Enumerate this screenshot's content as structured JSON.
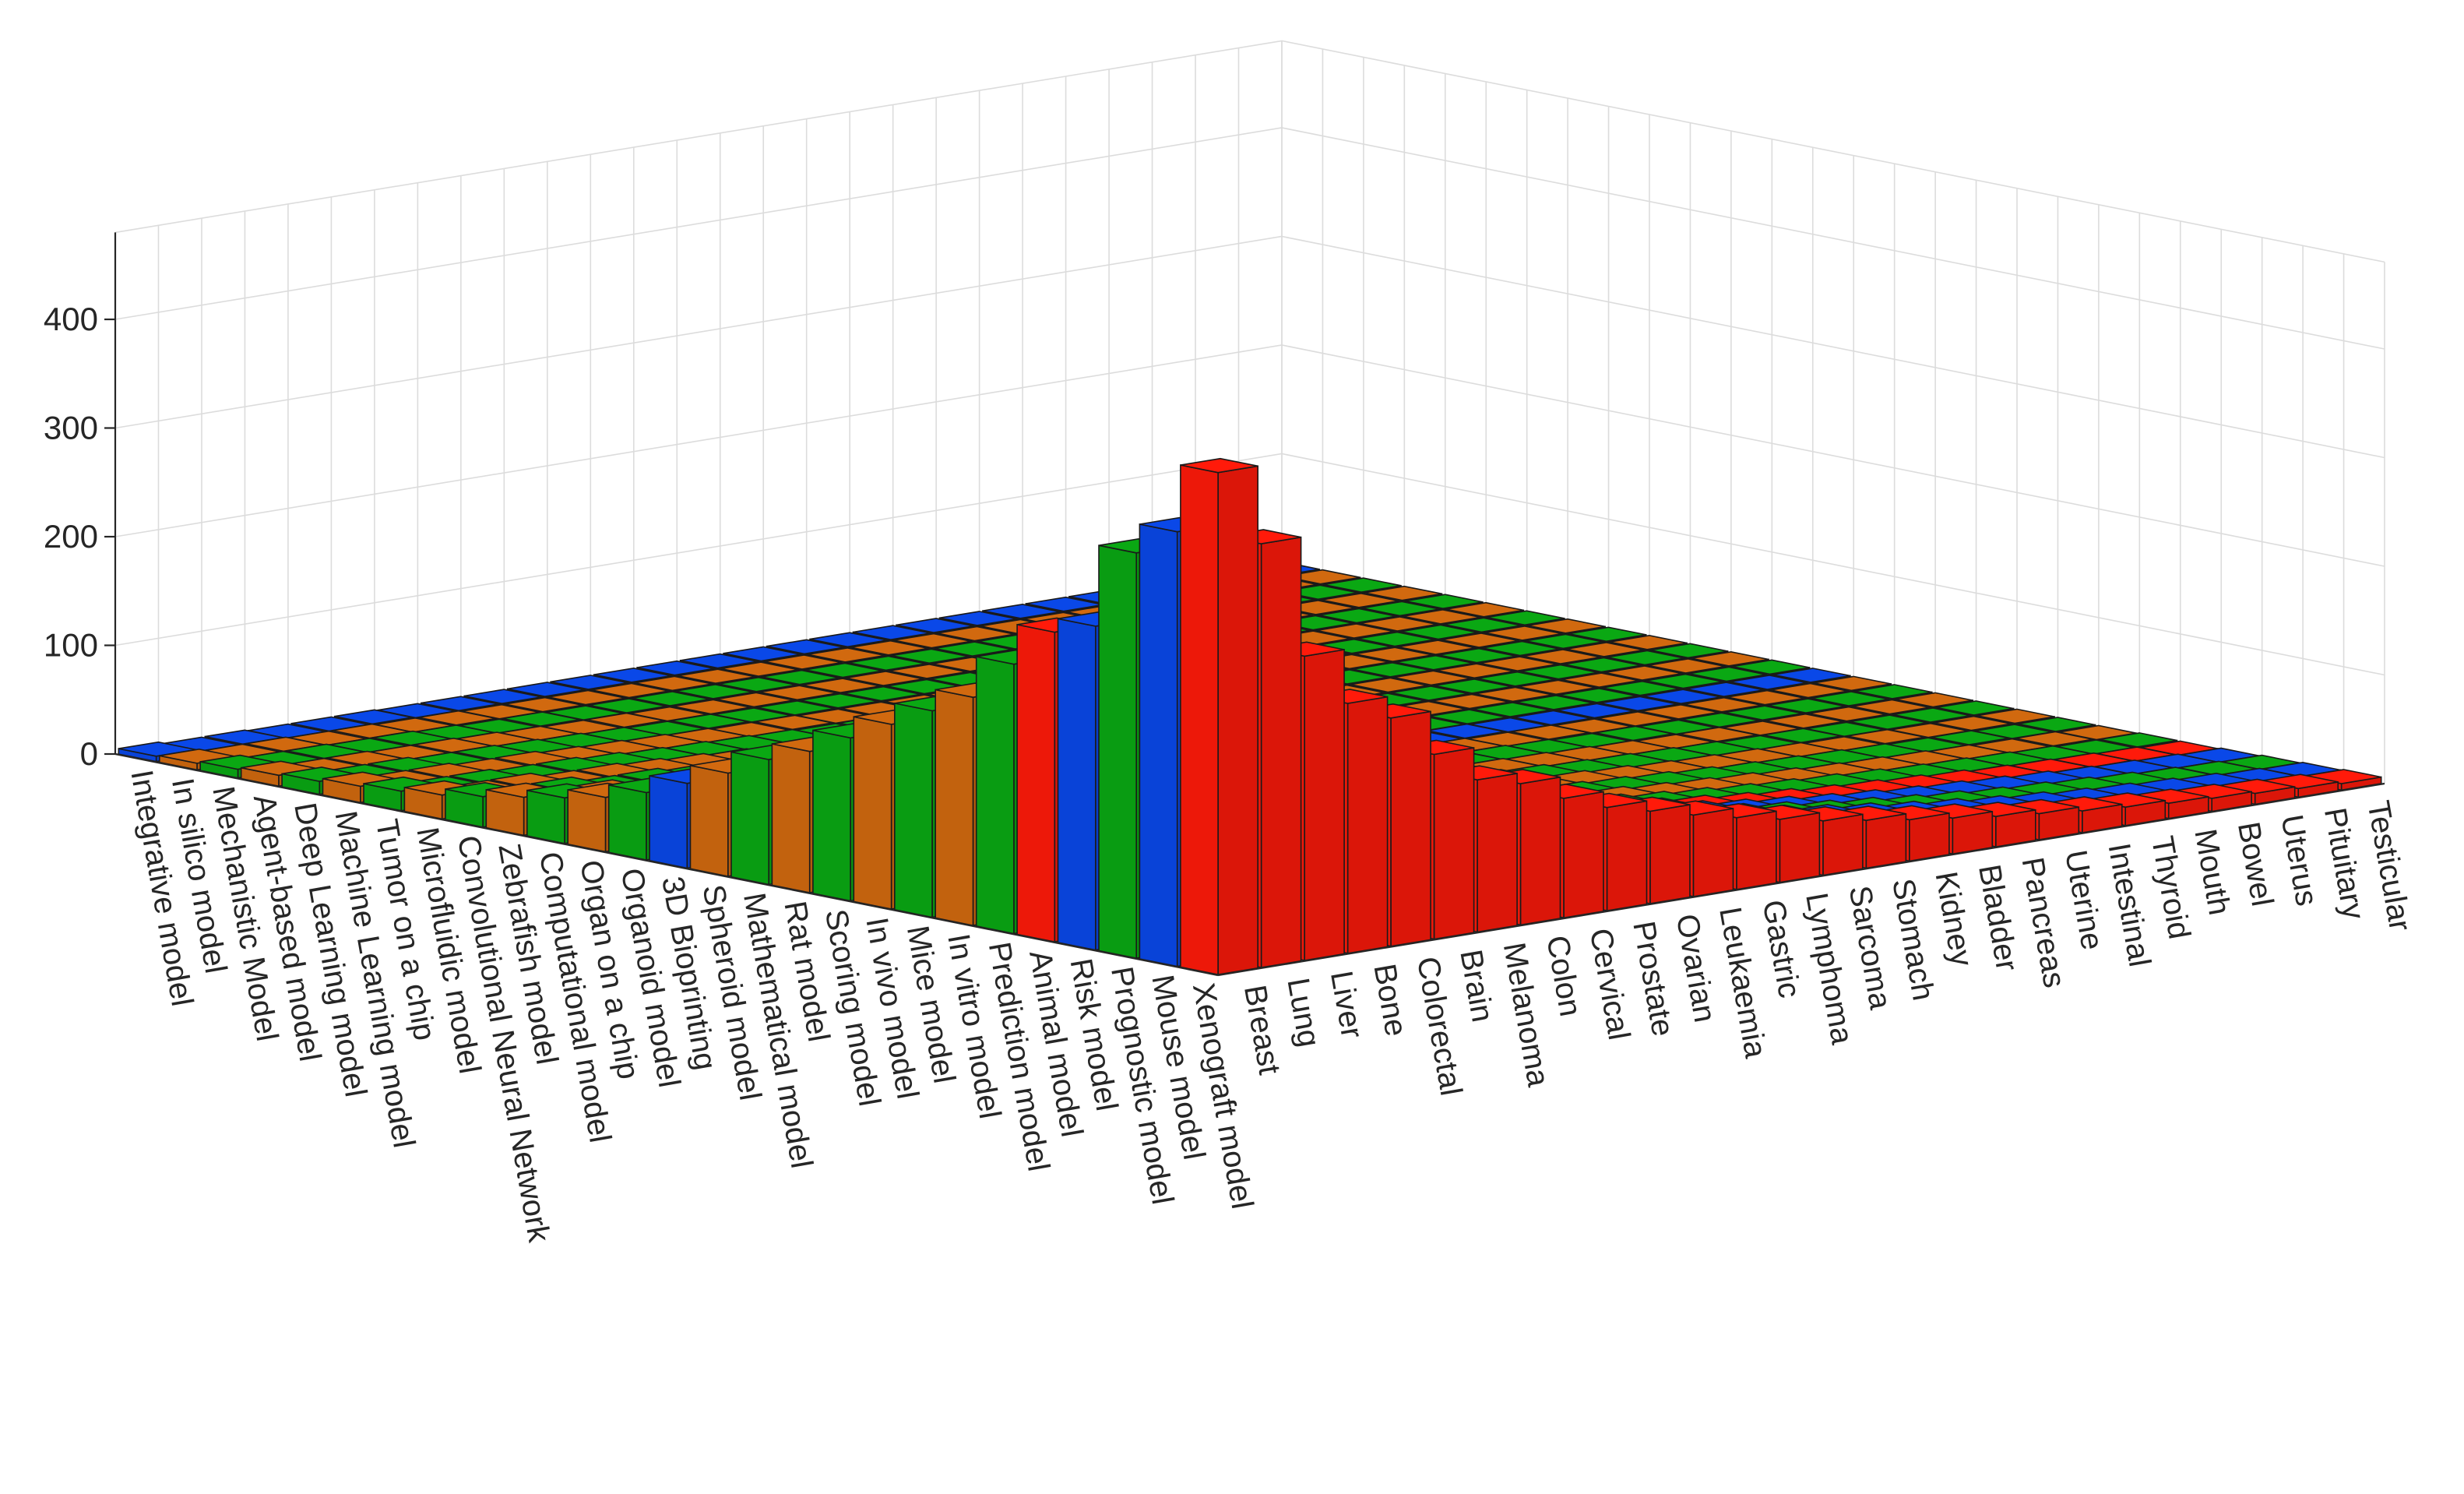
{
  "chart_data": {
    "type": "bar3d",
    "title": "",
    "z_ticks": [
      0,
      100,
      200,
      300,
      400
    ],
    "z_range": [
      0,
      480
    ],
    "grid": true,
    "models": [
      "Xenograft model",
      "Mouse model",
      "Prognostic model",
      "Risk model",
      "Animal model",
      "Prediction model",
      "In vitro model",
      "Mice model",
      "In vivo model",
      "Scoring model",
      "Rat model",
      "Mathematical model",
      "Spheroid model",
      "3D Bioprinting",
      "Organoid model",
      "Organ on a chip",
      "Computational model",
      "Zebrafish model",
      "Convolutional Neural Network",
      "Microfluidic model",
      "Tumor on a chip",
      "Machine Learning model",
      "Deep Learning model",
      "Agent-based model",
      "Mechanistic Model",
      "In silico model",
      "Integrative model"
    ],
    "cancers": [
      "Breast",
      "Lung",
      "Liver",
      "Bone",
      "Colorectal",
      "Brain",
      "Melanoma",
      "Colon",
      "Cervical",
      "Prostate",
      "Ovarian",
      "Leukaemia",
      "Gastric",
      "Lymphoma",
      "Sarcoma",
      "Stomach",
      "Kidney",
      "Bladder",
      "Pancreas",
      "Uterine",
      "Intestinal",
      "Thyroid",
      "Mouth",
      "Bowel",
      "Uterus",
      "Pituitary",
      "Testicular"
    ],
    "row_colors": [
      "red",
      "blue",
      "green",
      "blue",
      "red",
      "green",
      "orange",
      "green",
      "orange",
      "green",
      "orange",
      "green",
      "orange",
      "blue",
      "green",
      "orange",
      "green",
      "orange",
      "green",
      "orange",
      "green",
      "orange",
      "green",
      "orange",
      "green",
      "orange",
      "blue"
    ],
    "colors": {
      "red": "#ff1a0a",
      "blue": "#0a48e8",
      "green": "#0aa813",
      "orange": "#d1690f"
    },
    "series": [
      {
        "name": "Breast",
        "values": [
          462,
          400,
          373,
          298,
          285,
          248,
          210,
          190,
          170,
          150,
          130,
          115,
          95,
          78,
          62,
          50,
          42,
          35,
          28,
          22,
          18,
          15,
          12,
          10,
          8,
          6,
          5
        ]
      },
      {
        "name": "Lung",
        "values": [
          390,
          280,
          258,
          200,
          190,
          175,
          155,
          120,
          110,
          95,
          80,
          70,
          60,
          50,
          42,
          35,
          30,
          25,
          20,
          16,
          12,
          10,
          8,
          6,
          5,
          4,
          3
        ]
      },
      {
        "name": "Liver",
        "values": [
          280,
          270,
          215,
          180,
          160,
          140,
          130,
          115,
          100,
          90,
          80,
          70,
          60,
          50,
          40,
          35,
          30,
          25,
          20,
          16,
          12,
          10,
          8,
          6,
          5,
          4,
          3
        ]
      },
      {
        "name": "Bone",
        "values": [
          230,
          160,
          150,
          130,
          120,
          100,
          90,
          80,
          70,
          60,
          55,
          48,
          42,
          36,
          30,
          26,
          22,
          18,
          15,
          12,
          10,
          8,
          6,
          5,
          4,
          3,
          2
        ]
      },
      {
        "name": "Colorectal",
        "values": [
          210,
          170,
          160,
          140,
          120,
          100,
          90,
          80,
          70,
          60,
          55,
          48,
          42,
          36,
          30,
          26,
          22,
          18,
          15,
          12,
          10,
          8,
          6,
          5,
          4,
          3,
          2
        ]
      },
      {
        "name": "Brain",
        "values": [
          170,
          150,
          135,
          120,
          105,
          90,
          80,
          70,
          60,
          52,
          45,
          40,
          35,
          30,
          26,
          22,
          18,
          15,
          12,
          10,
          8,
          6,
          5,
          4,
          3,
          2,
          2
        ]
      },
      {
        "name": "Melanoma",
        "values": [
          140,
          130,
          115,
          100,
          90,
          80,
          70,
          60,
          52,
          45,
          40,
          35,
          30,
          26,
          22,
          18,
          15,
          12,
          10,
          8,
          6,
          5,
          4,
          3,
          2,
          2,
          1
        ]
      },
      {
        "name": "Colon",
        "values": [
          130,
          120,
          100,
          88,
          78,
          68,
          60,
          52,
          45,
          40,
          35,
          30,
          26,
          22,
          18,
          15,
          12,
          10,
          8,
          6,
          5,
          4,
          3,
          2,
          2,
          1,
          1
        ]
      },
      {
        "name": "Cervical",
        "values": [
          110,
          95,
          85,
          75,
          66,
          58,
          50,
          44,
          38,
          33,
          28,
          24,
          20,
          17,
          14,
          12,
          10,
          8,
          6,
          5,
          4,
          3,
          2,
          2,
          1,
          1,
          1
        ]
      },
      {
        "name": "Prostate",
        "values": [
          95,
          85,
          75,
          66,
          58,
          50,
          44,
          38,
          33,
          28,
          24,
          20,
          17,
          14,
          12,
          10,
          8,
          6,
          5,
          4,
          3,
          2,
          2,
          1,
          1,
          1,
          0
        ]
      },
      {
        "name": "Ovarian",
        "values": [
          85,
          75,
          66,
          58,
          50,
          44,
          38,
          33,
          28,
          24,
          20,
          17,
          14,
          12,
          10,
          8,
          6,
          5,
          4,
          3,
          2,
          2,
          1,
          1,
          1,
          0,
          0
        ]
      },
      {
        "name": "Leukaemia",
        "values": [
          75,
          66,
          58,
          50,
          44,
          38,
          33,
          28,
          24,
          20,
          17,
          14,
          12,
          10,
          8,
          6,
          5,
          4,
          3,
          2,
          2,
          1,
          1,
          1,
          0,
          0,
          0
        ]
      },
      {
        "name": "Gastric",
        "values": [
          66,
          58,
          50,
          44,
          38,
          33,
          28,
          24,
          20,
          17,
          14,
          12,
          10,
          8,
          6,
          5,
          4,
          3,
          2,
          2,
          1,
          1,
          1,
          0,
          0,
          0,
          0
        ]
      },
      {
        "name": "Lymphoma",
        "values": [
          58,
          50,
          44,
          38,
          33,
          28,
          24,
          20,
          17,
          14,
          12,
          10,
          8,
          6,
          5,
          4,
          3,
          2,
          2,
          1,
          1,
          1,
          0,
          0,
          0,
          0,
          0
        ]
      },
      {
        "name": "Sarcoma",
        "values": [
          50,
          44,
          38,
          33,
          28,
          24,
          20,
          17,
          14,
          12,
          10,
          8,
          6,
          5,
          4,
          3,
          2,
          2,
          1,
          1,
          1,
          0,
          0,
          0,
          0,
          0,
          0
        ]
      },
      {
        "name": "Stomach",
        "values": [
          44,
          38,
          33,
          28,
          24,
          20,
          17,
          14,
          12,
          10,
          8,
          6,
          5,
          4,
          3,
          2,
          2,
          1,
          1,
          1,
          0,
          0,
          0,
          0,
          0,
          0,
          0
        ]
      },
      {
        "name": "Kidney",
        "values": [
          38,
          33,
          28,
          24,
          20,
          17,
          14,
          12,
          10,
          8,
          6,
          5,
          4,
          3,
          2,
          2,
          1,
          1,
          1,
          0,
          0,
          0,
          0,
          0,
          0,
          0,
          0
        ]
      },
      {
        "name": "Bladder",
        "values": [
          33,
          28,
          24,
          20,
          17,
          14,
          12,
          10,
          8,
          6,
          5,
          4,
          3,
          2,
          2,
          1,
          1,
          1,
          0,
          0,
          0,
          0,
          0,
          0,
          0,
          0,
          0
        ]
      },
      {
        "name": "Pancreas",
        "values": [
          28,
          24,
          20,
          17,
          14,
          12,
          10,
          8,
          6,
          5,
          4,
          3,
          2,
          2,
          1,
          1,
          1,
          0,
          0,
          0,
          0,
          0,
          0,
          0,
          0,
          0,
          0
        ]
      },
      {
        "name": "Uterine",
        "values": [
          24,
          20,
          17,
          14,
          12,
          10,
          8,
          6,
          5,
          4,
          3,
          2,
          2,
          1,
          1,
          1,
          0,
          0,
          0,
          0,
          0,
          0,
          0,
          0,
          0,
          0,
          0
        ]
      },
      {
        "name": "Intestinal",
        "values": [
          20,
          17,
          14,
          12,
          10,
          8,
          6,
          5,
          4,
          3,
          2,
          2,
          1,
          1,
          1,
          0,
          0,
          0,
          0,
          0,
          0,
          0,
          0,
          0,
          0,
          0,
          0
        ]
      },
      {
        "name": "Thyroid",
        "values": [
          17,
          14,
          12,
          10,
          8,
          6,
          5,
          4,
          3,
          2,
          2,
          1,
          1,
          1,
          0,
          0,
          0,
          0,
          0,
          0,
          0,
          0,
          0,
          0,
          0,
          0,
          0
        ]
      },
      {
        "name": "Mouth",
        "values": [
          14,
          12,
          10,
          8,
          6,
          5,
          4,
          3,
          2,
          2,
          1,
          1,
          1,
          0,
          0,
          0,
          0,
          0,
          0,
          0,
          0,
          0,
          0,
          0,
          0,
          0,
          0
        ]
      },
      {
        "name": "Bowel",
        "values": [
          12,
          10,
          8,
          6,
          5,
          4,
          3,
          2,
          2,
          1,
          1,
          1,
          0,
          0,
          0,
          0,
          0,
          0,
          0,
          0,
          0,
          0,
          0,
          0,
          0,
          0,
          0
        ]
      },
      {
        "name": "Uterus",
        "values": [
          10,
          8,
          6,
          5,
          4,
          3,
          2,
          2,
          1,
          1,
          1,
          0,
          0,
          0,
          0,
          0,
          0,
          0,
          0,
          0,
          0,
          0,
          0,
          0,
          0,
          0,
          0
        ]
      },
      {
        "name": "Pituitary",
        "values": [
          8,
          6,
          5,
          4,
          3,
          2,
          2,
          1,
          1,
          1,
          0,
          0,
          0,
          0,
          0,
          0,
          0,
          0,
          0,
          0,
          0,
          0,
          0,
          0,
          0,
          0,
          0
        ]
      },
      {
        "name": "Testicular",
        "values": [
          6,
          5,
          4,
          3,
          2,
          2,
          1,
          1,
          1,
          0,
          0,
          0,
          0,
          0,
          0,
          0,
          0,
          0,
          0,
          0,
          0,
          0,
          0,
          0,
          0,
          0,
          0
        ]
      }
    ]
  }
}
